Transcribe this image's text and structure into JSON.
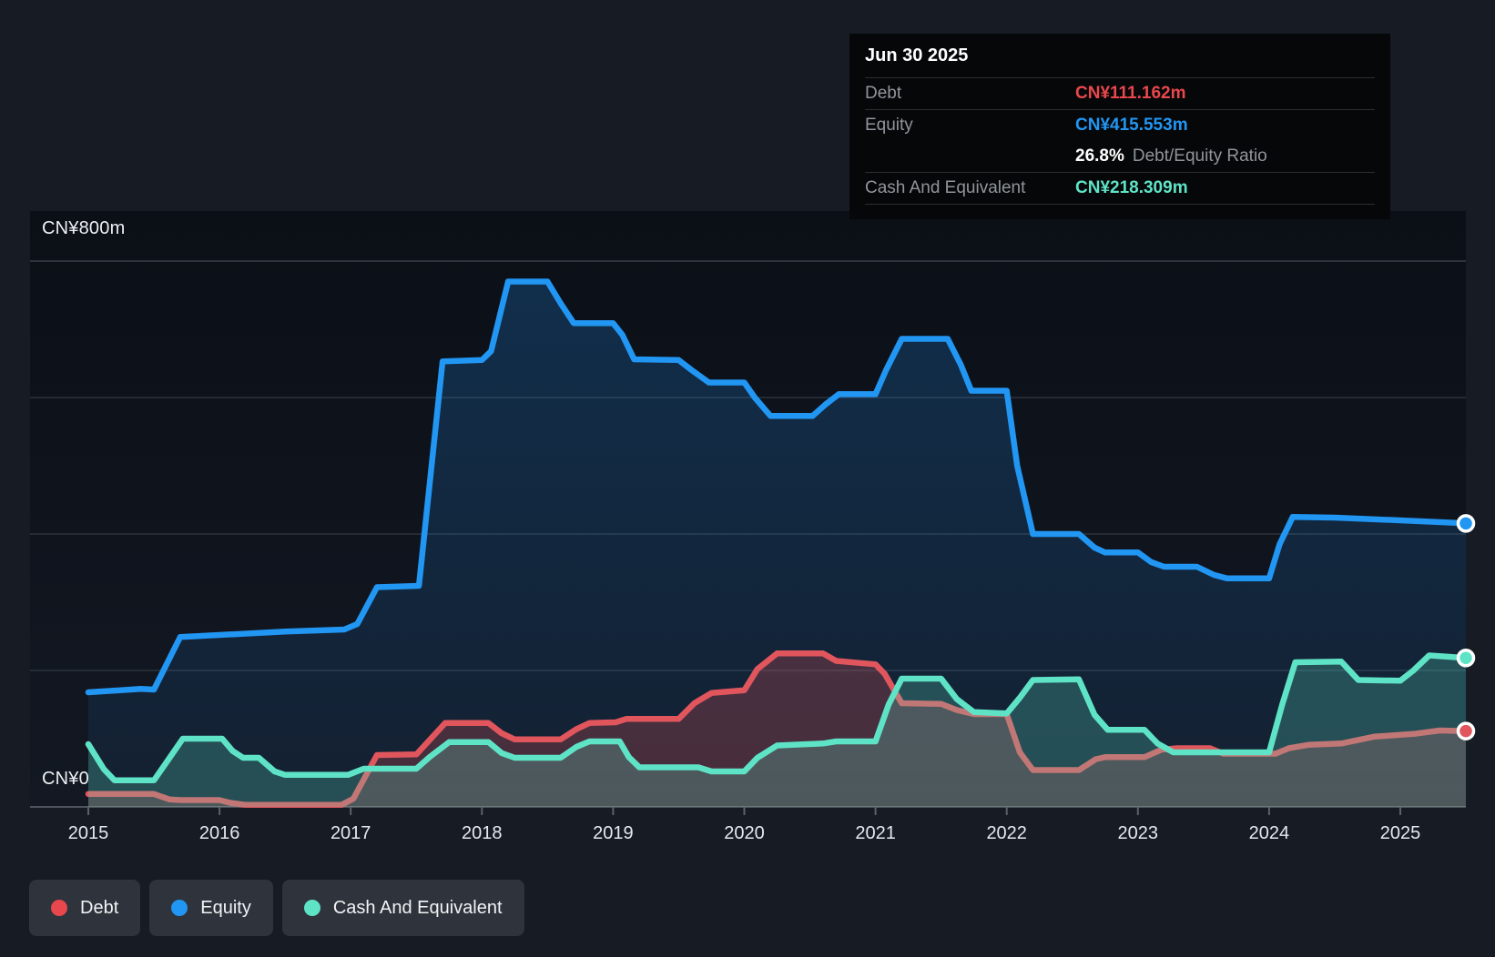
{
  "axis": {
    "y_top_label": "CN¥800m",
    "y_zero_label": "CN¥0",
    "years": [
      "2015",
      "2016",
      "2017",
      "2018",
      "2019",
      "2020",
      "2021",
      "2022",
      "2023",
      "2024",
      "2025"
    ]
  },
  "tooltip": {
    "date": "Jun 30 2025",
    "debt_label": "Debt",
    "debt_value": "CN¥111.162m",
    "equity_label": "Equity",
    "equity_value": "CN¥415.553m",
    "ratio_value": "26.8%",
    "ratio_label": "Debt/Equity Ratio",
    "cash_label": "Cash And Equivalent",
    "cash_value": "CN¥218.309m"
  },
  "legend": {
    "items": [
      {
        "label": "Debt",
        "color": "#e8474d"
      },
      {
        "label": "Equity",
        "color": "#2196f3"
      },
      {
        "label": "Cash And Equivalent",
        "color": "#5fe3c6"
      }
    ]
  },
  "colors": {
    "debt": "#e8474d",
    "equity": "#2196f3",
    "cash": "#5fe3c6",
    "background": "#171b24",
    "tooltip_bg": "#060708"
  },
  "chart_data": {
    "type": "area",
    "title": "Debt to Equity History",
    "y_unit": "CN¥m",
    "x_range": [
      2015,
      2025.5
    ],
    "ylim": [
      0,
      800
    ],
    "gridline_values": [
      0,
      200,
      400,
      600,
      800
    ],
    "grid": true,
    "legend_position": "bottom-left",
    "tooltip_point": {
      "date": "Jun 30 2025",
      "debt": 111.162,
      "equity": 415.553,
      "cash": 218.309,
      "debt_equity_ratio_pct": 26.8
    },
    "series": [
      {
        "name": "Debt",
        "color": "#e0565c",
        "end_value": 111.162,
        "points": [
          [
            2015.0,
            19
          ],
          [
            2015.5,
            19
          ],
          [
            2015.62,
            11
          ],
          [
            2015.7,
            10
          ],
          [
            2016.0,
            10
          ],
          [
            2016.08,
            6
          ],
          [
            2016.2,
            3
          ],
          [
            2016.93,
            3
          ],
          [
            2017.02,
            12
          ],
          [
            2017.2,
            76
          ],
          [
            2017.5,
            77
          ],
          [
            2017.72,
            123
          ],
          [
            2018.05,
            123
          ],
          [
            2018.15,
            108
          ],
          [
            2018.25,
            99
          ],
          [
            2018.6,
            99
          ],
          [
            2018.72,
            114
          ],
          [
            2018.82,
            123
          ],
          [
            2019.02,
            124
          ],
          [
            2019.1,
            129
          ],
          [
            2019.5,
            129
          ],
          [
            2019.62,
            152
          ],
          [
            2019.75,
            167
          ],
          [
            2020.0,
            171
          ],
          [
            2020.1,
            202
          ],
          [
            2020.25,
            225
          ],
          [
            2020.6,
            225
          ],
          [
            2020.7,
            214
          ],
          [
            2021.0,
            209
          ],
          [
            2021.07,
            195
          ],
          [
            2021.2,
            152
          ],
          [
            2021.5,
            151
          ],
          [
            2021.62,
            142
          ],
          [
            2021.75,
            136
          ],
          [
            2022.0,
            136
          ],
          [
            2022.1,
            80
          ],
          [
            2022.2,
            54
          ],
          [
            2022.55,
            54
          ],
          [
            2022.68,
            70
          ],
          [
            2022.75,
            73
          ],
          [
            2023.05,
            73
          ],
          [
            2023.18,
            84
          ],
          [
            2023.3,
            86
          ],
          [
            2023.55,
            86
          ],
          [
            2023.65,
            78
          ],
          [
            2024.05,
            78
          ],
          [
            2024.15,
            86
          ],
          [
            2024.3,
            91
          ],
          [
            2024.55,
            93
          ],
          [
            2024.8,
            103
          ],
          [
            2025.1,
            107
          ],
          [
            2025.3,
            112
          ],
          [
            2025.5,
            111.162
          ]
        ]
      },
      {
        "name": "Equity",
        "color": "#2196f3",
        "end_value": 415.553,
        "points": [
          [
            2015.0,
            168
          ],
          [
            2015.4,
            173
          ],
          [
            2015.5,
            172
          ],
          [
            2015.7,
            249
          ],
          [
            2016.0,
            252
          ],
          [
            2016.5,
            257
          ],
          [
            2016.95,
            260
          ],
          [
            2017.05,
            268
          ],
          [
            2017.2,
            322
          ],
          [
            2017.52,
            324
          ],
          [
            2017.7,
            653
          ],
          [
            2018.0,
            655
          ],
          [
            2018.07,
            668
          ],
          [
            2018.2,
            770
          ],
          [
            2018.5,
            770
          ],
          [
            2018.6,
            738
          ],
          [
            2018.7,
            709
          ],
          [
            2019.0,
            709
          ],
          [
            2019.07,
            692
          ],
          [
            2019.16,
            656
          ],
          [
            2019.5,
            655
          ],
          [
            2019.6,
            640
          ],
          [
            2019.73,
            622
          ],
          [
            2020.0,
            622
          ],
          [
            2020.08,
            600
          ],
          [
            2020.2,
            573
          ],
          [
            2020.52,
            573
          ],
          [
            2020.62,
            590
          ],
          [
            2020.72,
            605
          ],
          [
            2021.0,
            605
          ],
          [
            2021.08,
            640
          ],
          [
            2021.2,
            686
          ],
          [
            2021.55,
            686
          ],
          [
            2021.65,
            648
          ],
          [
            2021.73,
            610
          ],
          [
            2022.0,
            610
          ],
          [
            2022.08,
            500
          ],
          [
            2022.2,
            400
          ],
          [
            2022.55,
            400
          ],
          [
            2022.67,
            380
          ],
          [
            2022.75,
            373
          ],
          [
            2023.0,
            373
          ],
          [
            2023.1,
            359
          ],
          [
            2023.2,
            352
          ],
          [
            2023.45,
            352
          ],
          [
            2023.58,
            340
          ],
          [
            2023.68,
            335
          ],
          [
            2024.0,
            335
          ],
          [
            2024.08,
            385
          ],
          [
            2024.18,
            425
          ],
          [
            2024.5,
            424
          ],
          [
            2025.0,
            420
          ],
          [
            2025.5,
            415.553
          ]
        ]
      },
      {
        "name": "Cash And Equivalent",
        "color": "#5fe3c6",
        "end_value": 218.309,
        "points": [
          [
            2015.0,
            92
          ],
          [
            2015.12,
            55
          ],
          [
            2015.2,
            39
          ],
          [
            2015.5,
            39
          ],
          [
            2015.62,
            72
          ],
          [
            2015.72,
            100
          ],
          [
            2016.02,
            100
          ],
          [
            2016.1,
            82
          ],
          [
            2016.18,
            72
          ],
          [
            2016.3,
            72
          ],
          [
            2016.42,
            52
          ],
          [
            2016.5,
            47
          ],
          [
            2016.98,
            47
          ],
          [
            2017.1,
            56
          ],
          [
            2017.5,
            56
          ],
          [
            2017.6,
            73
          ],
          [
            2017.75,
            95
          ],
          [
            2018.05,
            95
          ],
          [
            2018.15,
            79
          ],
          [
            2018.25,
            72
          ],
          [
            2018.6,
            72
          ],
          [
            2018.72,
            88
          ],
          [
            2018.82,
            96
          ],
          [
            2019.05,
            96
          ],
          [
            2019.12,
            73
          ],
          [
            2019.2,
            58
          ],
          [
            2019.65,
            58
          ],
          [
            2019.75,
            52
          ],
          [
            2020.0,
            52
          ],
          [
            2020.1,
            72
          ],
          [
            2020.25,
            90
          ],
          [
            2020.6,
            93
          ],
          [
            2020.7,
            96
          ],
          [
            2021.0,
            96
          ],
          [
            2021.1,
            150
          ],
          [
            2021.2,
            188
          ],
          [
            2021.5,
            188
          ],
          [
            2021.62,
            158
          ],
          [
            2021.75,
            139
          ],
          [
            2022.0,
            137
          ],
          [
            2022.1,
            160
          ],
          [
            2022.2,
            186
          ],
          [
            2022.55,
            187
          ],
          [
            2022.67,
            135
          ],
          [
            2022.77,
            113
          ],
          [
            2023.05,
            113
          ],
          [
            2023.15,
            93
          ],
          [
            2023.27,
            80
          ],
          [
            2024.0,
            80
          ],
          [
            2024.1,
            150
          ],
          [
            2024.2,
            212
          ],
          [
            2024.55,
            213
          ],
          [
            2024.68,
            186
          ],
          [
            2025.0,
            185
          ],
          [
            2025.1,
            200
          ],
          [
            2025.22,
            222
          ],
          [
            2025.5,
            218.309
          ]
        ]
      }
    ]
  }
}
